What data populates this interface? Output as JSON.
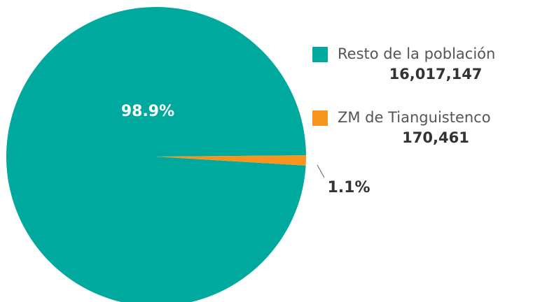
{
  "chart_data": {
    "type": "pie",
    "categories": [
      "Resto de la población",
      "ZM de Tianguistenco"
    ],
    "values": [
      98.9,
      1.1
    ],
    "value_labels": [
      "98.9%",
      "1.1%"
    ],
    "population_labels": [
      "16,017,147",
      "170,461"
    ],
    "colors": [
      "#00a99d",
      "#f7941d"
    ]
  }
}
